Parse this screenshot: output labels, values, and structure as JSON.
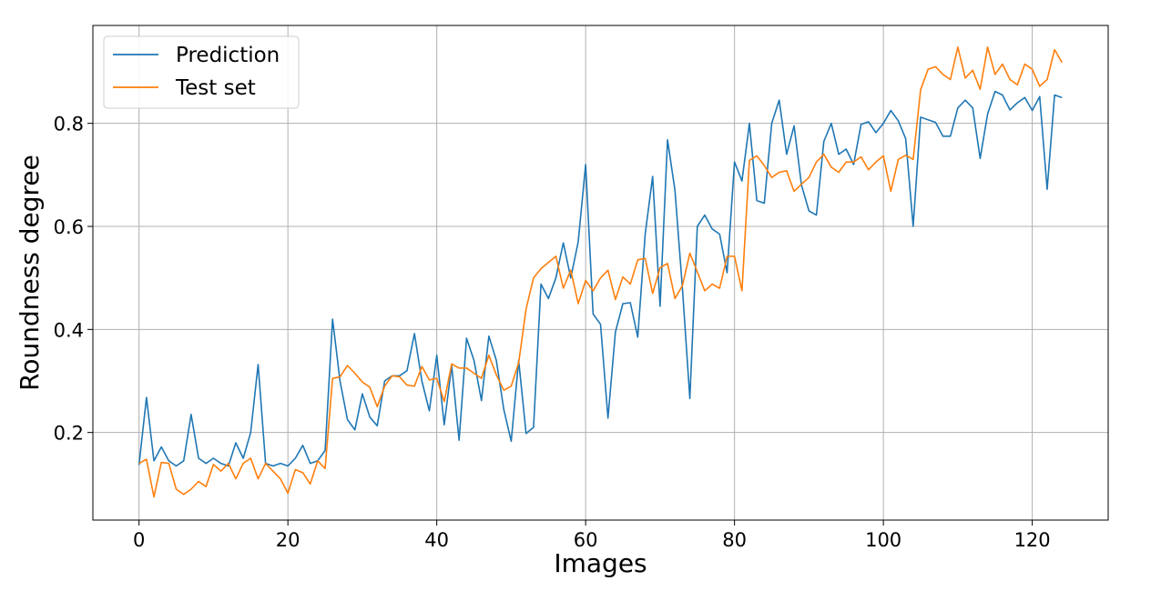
{
  "chart_data": {
    "type": "line",
    "title": "",
    "xlabel": "Images",
    "ylabel": "Roundness degree",
    "xlim": [
      -6.2,
      130.2
    ],
    "ylim": [
      0.03,
      0.99
    ],
    "xticks": [
      0,
      20,
      40,
      60,
      80,
      100,
      120
    ],
    "yticks": [
      0.2,
      0.4,
      0.6,
      0.8
    ],
    "xtick_labels": [
      "0",
      "20",
      "40",
      "60",
      "80",
      "100",
      "120"
    ],
    "ytick_labels": [
      "0.2",
      "0.4",
      "0.6",
      "0.8"
    ],
    "grid": true,
    "legend_position": "top-left",
    "series": [
      {
        "name": "Prediction",
        "color": "#1f77b4",
        "values": [
          0.137,
          0.268,
          0.145,
          0.172,
          0.145,
          0.135,
          0.145,
          0.235,
          0.15,
          0.14,
          0.15,
          0.14,
          0.135,
          0.18,
          0.15,
          0.2,
          0.332,
          0.14,
          0.135,
          0.14,
          0.135,
          0.15,
          0.175,
          0.14,
          0.145,
          0.165,
          0.42,
          0.3,
          0.225,
          0.205,
          0.275,
          0.23,
          0.213,
          0.3,
          0.31,
          0.31,
          0.32,
          0.392,
          0.3,
          0.242,
          0.35,
          0.215,
          0.33,
          0.185,
          0.383,
          0.34,
          0.262,
          0.387,
          0.34,
          0.245,
          0.183,
          0.34,
          0.198,
          0.21,
          0.488,
          0.46,
          0.5,
          0.568,
          0.5,
          0.57,
          0.72,
          0.43,
          0.41,
          0.228,
          0.395,
          0.45,
          0.452,
          0.385,
          0.585,
          0.697,
          0.445,
          0.768,
          0.67,
          0.48,
          0.266,
          0.6,
          0.622,
          0.595,
          0.585,
          0.51,
          0.725,
          0.688,
          0.8,
          0.65,
          0.645,
          0.8,
          0.845,
          0.74,
          0.795,
          0.68,
          0.63,
          0.622,
          0.765,
          0.8,
          0.74,
          0.75,
          0.72,
          0.798,
          0.803,
          0.782,
          0.8,
          0.825,
          0.805,
          0.77,
          0.6,
          0.812,
          0.807,
          0.802,
          0.775,
          0.775,
          0.83,
          0.845,
          0.83,
          0.732,
          0.818,
          0.862,
          0.855,
          0.826,
          0.84,
          0.85,
          0.825,
          0.852,
          0.672,
          0.855,
          0.85
        ]
      },
      {
        "name": "Test set",
        "color": "#ff7f0e",
        "values": [
          0.14,
          0.148,
          0.075,
          0.142,
          0.14,
          0.09,
          0.08,
          0.09,
          0.105,
          0.095,
          0.138,
          0.125,
          0.14,
          0.11,
          0.14,
          0.15,
          0.11,
          0.14,
          0.125,
          0.11,
          0.082,
          0.128,
          0.122,
          0.1,
          0.145,
          0.13,
          0.305,
          0.308,
          0.33,
          0.315,
          0.298,
          0.288,
          0.25,
          0.29,
          0.31,
          0.308,
          0.292,
          0.29,
          0.328,
          0.302,
          0.305,
          0.26,
          0.333,
          0.325,
          0.325,
          0.315,
          0.305,
          0.35,
          0.312,
          0.282,
          0.29,
          0.335,
          0.44,
          0.5,
          0.518,
          0.53,
          0.542,
          0.48,
          0.515,
          0.45,
          0.495,
          0.475,
          0.5,
          0.515,
          0.458,
          0.502,
          0.488,
          0.535,
          0.538,
          0.47,
          0.52,
          0.528,
          0.46,
          0.485,
          0.548,
          0.512,
          0.475,
          0.488,
          0.48,
          0.542,
          0.542,
          0.475,
          0.728,
          0.737,
          0.718,
          0.695,
          0.705,
          0.708,
          0.668,
          0.682,
          0.695,
          0.725,
          0.74,
          0.715,
          0.705,
          0.725,
          0.725,
          0.735,
          0.71,
          0.725,
          0.737,
          0.668,
          0.73,
          0.738,
          0.73,
          0.865,
          0.905,
          0.91,
          0.895,
          0.885,
          0.948,
          0.888,
          0.903,
          0.866,
          0.948,
          0.895,
          0.915,
          0.885,
          0.875,
          0.915,
          0.905,
          0.872,
          0.885,
          0.943,
          0.918
        ]
      }
    ]
  }
}
